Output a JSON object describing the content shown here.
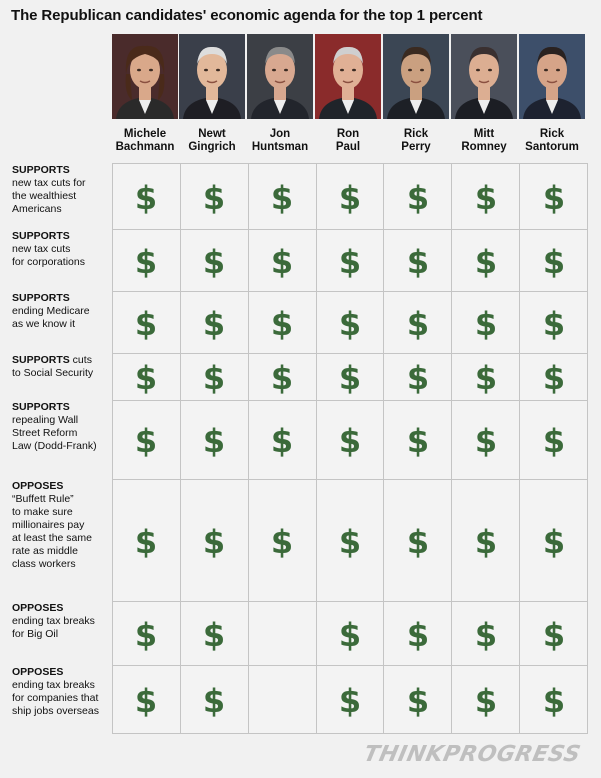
{
  "chart_data": {
    "type": "table",
    "title": "The Republican candidates' economic agenda for the top 1 percent",
    "columns": [
      {
        "first": "Michele",
        "last": "Bachmann"
      },
      {
        "first": "Newt",
        "last": "Gingrich"
      },
      {
        "first": "Jon",
        "last": "Huntsman"
      },
      {
        "first": "Ron",
        "last": "Paul"
      },
      {
        "first": "Rick",
        "last": "Perry"
      },
      {
        "first": "Mitt",
        "last": "Romney"
      },
      {
        "first": "Rick",
        "last": "Santorum"
      }
    ],
    "rows": [
      {
        "stance": "SUPPORTS",
        "text": "new tax cuts for the wealthiest Americans",
        "marks": [
          true,
          true,
          true,
          true,
          true,
          true,
          true
        ]
      },
      {
        "stance": "SUPPORTS",
        "text": "new tax cuts for corporations",
        "marks": [
          true,
          true,
          true,
          true,
          true,
          true,
          true
        ]
      },
      {
        "stance": "SUPPORTS",
        "text": "ending Medicare as we know it",
        "marks": [
          true,
          true,
          true,
          true,
          true,
          true,
          true
        ]
      },
      {
        "stance": "SUPPORTS",
        "text": "cuts to Social Security",
        "marks": [
          true,
          true,
          true,
          true,
          true,
          true,
          true
        ]
      },
      {
        "stance": "SUPPORTS",
        "text": "repealing Wall Street Reform Law (Dodd-Frank)",
        "marks": [
          true,
          true,
          true,
          true,
          true,
          true,
          true
        ]
      },
      {
        "stance": "OPPOSES",
        "text": "“Buffett Rule” to make sure millionaires pay at least the same rate as middle class workers",
        "marks": [
          true,
          true,
          true,
          true,
          true,
          true,
          true
        ]
      },
      {
        "stance": "OPPOSES",
        "text": "ending tax breaks for Big Oil",
        "marks": [
          true,
          true,
          false,
          true,
          true,
          true,
          true
        ]
      },
      {
        "stance": "OPPOSES",
        "text": "ending tax breaks for companies that ship jobs overseas",
        "marks": [
          true,
          true,
          false,
          true,
          true,
          true,
          true
        ]
      }
    ],
    "mark_symbol": "$",
    "mark_color": "#3b6a3a"
  },
  "labels": {
    "row_lines": [
      [
        "",
        "new tax cuts for",
        "the wealthiest",
        "Americans"
      ],
      [
        "",
        "new tax cuts",
        "for corporations"
      ],
      [
        "",
        "ending Medicare",
        "as we know it"
      ],
      [
        " cuts",
        "to Social Security"
      ],
      [
        "",
        "repealing Wall",
        "Street Reform",
        "Law (Dodd-Frank)"
      ],
      [
        "",
        "“Buffett Rule”",
        "to make sure",
        "millionaires pay",
        "at least the same",
        "rate as middle",
        "class workers"
      ],
      [
        "",
        "ending tax breaks",
        "for Big Oil"
      ],
      [
        "",
        "ending tax breaks",
        "for companies that",
        "ship jobs overseas"
      ]
    ]
  },
  "logo": "THINKPROGRESS",
  "colors": {
    "background": "#f1f1f1",
    "grid": "#c4c4c4",
    "dollar": "#3b6a3a"
  }
}
